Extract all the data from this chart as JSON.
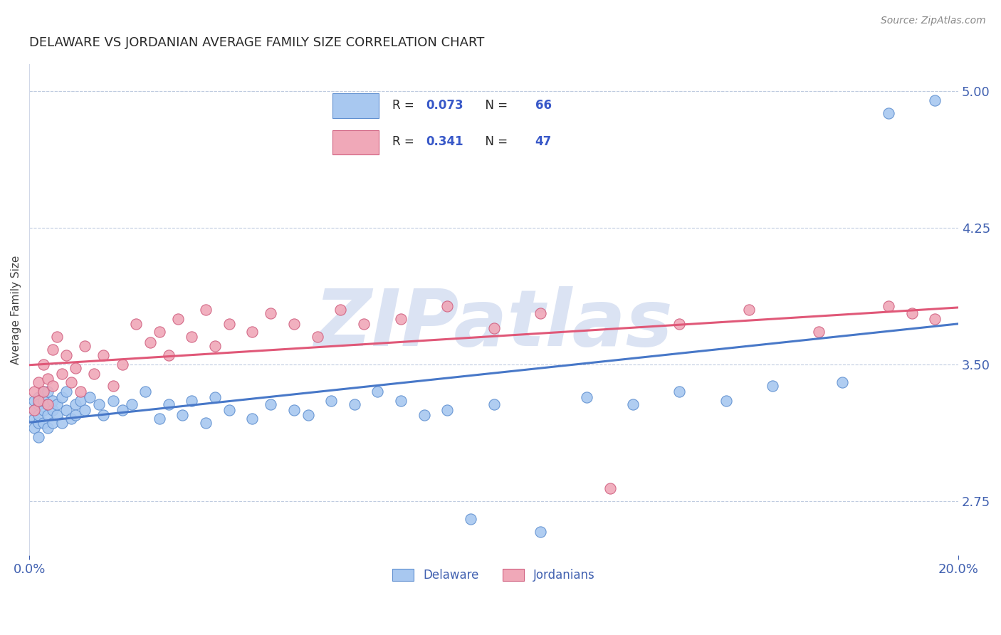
{
  "title": "DELAWARE VS JORDANIAN AVERAGE FAMILY SIZE CORRELATION CHART",
  "source_text": "Source: ZipAtlas.com",
  "ylabel": "Average Family Size",
  "xlim": [
    0.0,
    0.2
  ],
  "ylim": [
    2.45,
    5.15
  ],
  "yticks": [
    2.75,
    3.5,
    4.25,
    5.0
  ],
  "bg_color": "#ffffff",
  "grid_color": "#c0cce0",
  "watermark": "ZIPatlas",
  "watermark_color": "#b8c8e8",
  "legend_label1": "Delaware",
  "legend_label2": "Jordanians",
  "blue_scatter_face": "#a8c8f0",
  "blue_scatter_edge": "#6090d0",
  "pink_scatter_face": "#f0a8b8",
  "pink_scatter_edge": "#d06080",
  "blue_line_color": "#4878c8",
  "pink_line_color": "#e05878",
  "axis_tick_color": "#4060b0",
  "title_color": "#282828",
  "legend_text_dark": "#282828",
  "legend_text_blue": "#3858c8",
  "source_color": "#888888",
  "R1_val": "0.073",
  "N1_val": "66",
  "R2_val": "0.341",
  "N2_val": "47",
  "delaware_x": [
    0.001,
    0.001,
    0.001,
    0.001,
    0.002,
    0.002,
    0.002,
    0.002,
    0.002,
    0.003,
    0.003,
    0.003,
    0.003,
    0.004,
    0.004,
    0.004,
    0.004,
    0.005,
    0.005,
    0.005,
    0.006,
    0.006,
    0.007,
    0.007,
    0.008,
    0.008,
    0.009,
    0.01,
    0.01,
    0.011,
    0.012,
    0.013,
    0.015,
    0.016,
    0.018,
    0.02,
    0.022,
    0.025,
    0.028,
    0.03,
    0.033,
    0.035,
    0.038,
    0.04,
    0.043,
    0.048,
    0.052,
    0.057,
    0.06,
    0.065,
    0.07,
    0.075,
    0.08,
    0.085,
    0.09,
    0.095,
    0.1,
    0.11,
    0.12,
    0.13,
    0.14,
    0.15,
    0.16,
    0.175,
    0.185,
    0.195
  ],
  "delaware_y": [
    3.3,
    3.2,
    3.15,
    3.25,
    3.32,
    3.18,
    3.28,
    3.22,
    3.1,
    3.35,
    3.25,
    3.18,
    3.3,
    3.22,
    3.28,
    3.35,
    3.15,
    3.25,
    3.3,
    3.18,
    3.22,
    3.28,
    3.32,
    3.18,
    3.25,
    3.35,
    3.2,
    3.28,
    3.22,
    3.3,
    3.25,
    3.32,
    3.28,
    3.22,
    3.3,
    3.25,
    3.28,
    3.35,
    3.2,
    3.28,
    3.22,
    3.3,
    3.18,
    3.32,
    3.25,
    3.2,
    3.28,
    3.25,
    3.22,
    3.3,
    3.28,
    3.35,
    3.3,
    3.22,
    3.25,
    2.65,
    3.28,
    2.58,
    3.32,
    3.28,
    3.35,
    3.3,
    3.38,
    3.4,
    4.88,
    4.95
  ],
  "jordan_x": [
    0.001,
    0.001,
    0.002,
    0.002,
    0.003,
    0.003,
    0.004,
    0.004,
    0.005,
    0.005,
    0.006,
    0.007,
    0.008,
    0.009,
    0.01,
    0.011,
    0.012,
    0.014,
    0.016,
    0.018,
    0.02,
    0.023,
    0.026,
    0.028,
    0.03,
    0.032,
    0.035,
    0.038,
    0.04,
    0.043,
    0.048,
    0.052,
    0.057,
    0.062,
    0.067,
    0.072,
    0.08,
    0.09,
    0.1,
    0.11,
    0.125,
    0.14,
    0.155,
    0.17,
    0.185,
    0.19,
    0.195
  ],
  "jordan_y": [
    3.25,
    3.35,
    3.4,
    3.3,
    3.35,
    3.5,
    3.42,
    3.28,
    3.38,
    3.58,
    3.65,
    3.45,
    3.55,
    3.4,
    3.48,
    3.35,
    3.6,
    3.45,
    3.55,
    3.38,
    3.5,
    3.72,
    3.62,
    3.68,
    3.55,
    3.75,
    3.65,
    3.8,
    3.6,
    3.72,
    3.68,
    3.78,
    3.72,
    3.65,
    3.8,
    3.72,
    3.75,
    3.82,
    3.7,
    3.78,
    2.82,
    3.72,
    3.8,
    3.68,
    3.82,
    3.78,
    3.75
  ]
}
